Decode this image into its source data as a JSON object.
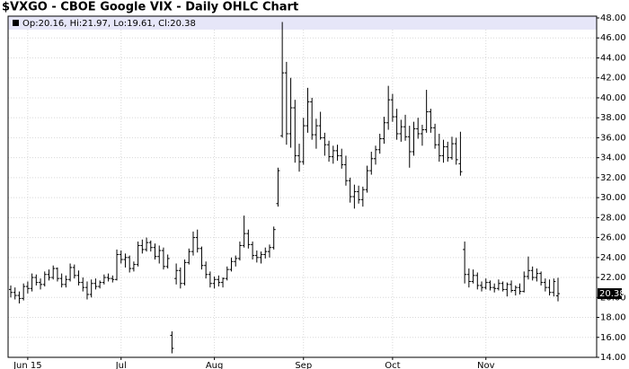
{
  "chart_data": {
    "type": "ohlc",
    "title": "$VXGO - CBOE Google VIX - Daily OHLC Chart",
    "legend": "Op:20.16, Hi:21.97, Lo:19.61, Cl:20.38",
    "color": "#000000",
    "grid": true,
    "last_price": 20.38,
    "ylim": [
      14,
      48
    ],
    "yticks": [
      {
        "value": 14,
        "label": "14.00"
      },
      {
        "value": 16,
        "label": "16.00"
      },
      {
        "value": 18,
        "label": "18.00"
      },
      {
        "value": 20,
        "label": "20.00"
      },
      {
        "value": 22,
        "label": "22.00"
      },
      {
        "value": 24,
        "label": "24.00"
      },
      {
        "value": 26,
        "label": "26.00"
      },
      {
        "value": 28,
        "label": "28.00"
      },
      {
        "value": 30,
        "label": "30.00"
      },
      {
        "value": 32,
        "label": "32.00"
      },
      {
        "value": 34,
        "label": "34.00"
      },
      {
        "value": 36,
        "label": "36.00"
      },
      {
        "value": 38,
        "label": "38.00"
      },
      {
        "value": 40,
        "label": "40.00"
      },
      {
        "value": 42,
        "label": "42.00"
      },
      {
        "value": 44,
        "label": "44.00"
      },
      {
        "value": 46,
        "label": "46.00"
      },
      {
        "value": 48,
        "label": "48.00"
      }
    ],
    "categories": [
      null,
      null,
      null,
      null,
      "Jun 15",
      null,
      null,
      null,
      null,
      null,
      null,
      null,
      null,
      null,
      null,
      null,
      null,
      null,
      null,
      null,
      null,
      null,
      null,
      null,
      null,
      null,
      "Jul",
      null,
      null,
      null,
      null,
      null,
      null,
      null,
      null,
      null,
      null,
      null,
      null,
      null,
      null,
      null,
      null,
      null,
      null,
      null,
      null,
      null,
      "Aug",
      null,
      null,
      null,
      null,
      null,
      null,
      null,
      null,
      null,
      null,
      null,
      null,
      null,
      null,
      null,
      null,
      null,
      null,
      null,
      null,
      "Sep",
      null,
      null,
      null,
      null,
      null,
      null,
      null,
      null,
      null,
      null,
      null,
      null,
      null,
      null,
      null,
      null,
      null,
      null,
      null,
      null,
      "Oct",
      null,
      null,
      null,
      null,
      null,
      null,
      null,
      null,
      null,
      null,
      null,
      null,
      null,
      null,
      null,
      null,
      null,
      null,
      null,
      null,
      null,
      "Nov",
      null,
      null,
      null,
      null,
      null,
      null,
      null,
      null,
      null,
      null,
      null,
      null,
      null,
      null,
      null,
      null,
      null
    ],
    "bars": [
      [
        20.8,
        21.2,
        20.0,
        20.5
      ],
      [
        20.5,
        21.0,
        19.8,
        20.2
      ],
      [
        20.2,
        20.6,
        19.4,
        19.9
      ],
      [
        19.9,
        21.4,
        19.7,
        21.1
      ],
      [
        21.1,
        21.6,
        20.4,
        20.9
      ],
      [
        20.9,
        22.4,
        20.6,
        22.0
      ],
      [
        22.0,
        22.3,
        21.2,
        21.5
      ],
      [
        21.5,
        21.9,
        20.8,
        21.3
      ],
      [
        21.3,
        22.6,
        21.1,
        22.3
      ],
      [
        22.3,
        22.8,
        21.7,
        22.0
      ],
      [
        22.0,
        23.2,
        21.8,
        22.9
      ],
      [
        22.9,
        23.0,
        21.6,
        21.9
      ],
      [
        21.9,
        22.4,
        21.0,
        21.3
      ],
      [
        21.3,
        22.2,
        21.0,
        21.8
      ],
      [
        21.8,
        23.4,
        21.6,
        23.0
      ],
      [
        23.0,
        23.3,
        21.9,
        22.2
      ],
      [
        22.2,
        22.7,
        21.2,
        21.5
      ],
      [
        21.5,
        22.0,
        20.6,
        21.0
      ],
      [
        21.0,
        21.6,
        19.8,
        20.3
      ],
      [
        20.3,
        21.8,
        20.0,
        21.4
      ],
      [
        21.4,
        21.9,
        20.8,
        21.1
      ],
      [
        21.1,
        21.7,
        20.9,
        21.5
      ],
      [
        21.5,
        22.3,
        21.3,
        22.0
      ],
      [
        22.0,
        22.4,
        21.6,
        21.9
      ],
      [
        21.9,
        22.2,
        21.5,
        21.8
      ],
      [
        21.8,
        24.8,
        21.7,
        24.3
      ],
      [
        24.3,
        24.7,
        23.4,
        23.8
      ],
      [
        23.8,
        24.4,
        23.0,
        24.0
      ],
      [
        24.0,
        24.2,
        22.5,
        22.9
      ],
      [
        22.9,
        23.6,
        22.6,
        23.3
      ],
      [
        23.3,
        25.6,
        23.1,
        25.2
      ],
      [
        25.2,
        25.8,
        24.4,
        24.8
      ],
      [
        24.8,
        26.0,
        24.6,
        25.5
      ],
      [
        25.5,
        25.7,
        24.6,
        25.0
      ],
      [
        25.0,
        25.4,
        23.8,
        24.1
      ],
      [
        24.1,
        25.2,
        23.4,
        24.7
      ],
      [
        24.7,
        25.0,
        22.8,
        23.1
      ],
      [
        23.1,
        24.3,
        22.9,
        23.9
      ],
      [
        16.2,
        16.6,
        14.4,
        14.9
      ],
      [
        21.9,
        23.4,
        21.3,
        22.7
      ],
      [
        22.7,
        23.0,
        20.9,
        21.4
      ],
      [
        21.4,
        23.8,
        21.2,
        23.5
      ],
      [
        23.5,
        24.9,
        23.3,
        24.6
      ],
      [
        24.6,
        26.6,
        24.2,
        26.0
      ],
      [
        26.0,
        26.8,
        24.5,
        24.9
      ],
      [
        24.9,
        25.1,
        22.8,
        23.2
      ],
      [
        23.2,
        23.6,
        21.9,
        22.3
      ],
      [
        22.3,
        22.6,
        21.0,
        21.4
      ],
      [
        21.4,
        22.1,
        20.9,
        21.8
      ],
      [
        21.8,
        22.2,
        21.1,
        21.5
      ],
      [
        21.5,
        22.0,
        21.0,
        21.9
      ],
      [
        21.9,
        23.1,
        21.7,
        22.8
      ],
      [
        22.8,
        24.0,
        22.6,
        23.6
      ],
      [
        23.6,
        24.2,
        23.1,
        23.9
      ],
      [
        23.9,
        25.6,
        23.7,
        25.2
      ],
      [
        25.2,
        28.2,
        25.0,
        26.4
      ],
      [
        26.4,
        26.8,
        24.9,
        25.3
      ],
      [
        25.3,
        25.6,
        23.8,
        24.2
      ],
      [
        24.2,
        24.7,
        23.5,
        24.0
      ],
      [
        24.0,
        24.6,
        23.4,
        24.3
      ],
      [
        24.3,
        25.0,
        23.9,
        24.6
      ],
      [
        24.6,
        25.3,
        24.0,
        25.0
      ],
      [
        25.0,
        27.1,
        24.8,
        26.8
      ],
      [
        29.4,
        33.0,
        29.1,
        32.7
      ],
      [
        36.2,
        47.6,
        36.0,
        42.5
      ],
      [
        42.5,
        43.6,
        35.3,
        36.4
      ],
      [
        36.4,
        42.0,
        35.0,
        39.0
      ],
      [
        39.0,
        39.8,
        33.5,
        34.2
      ],
      [
        34.2,
        35.4,
        32.6,
        33.6
      ],
      [
        33.6,
        38.0,
        33.3,
        37.2
      ],
      [
        37.2,
        41.0,
        36.5,
        39.6
      ],
      [
        39.6,
        40.0,
        35.8,
        36.3
      ],
      [
        36.3,
        37.9,
        34.9,
        37.2
      ],
      [
        37.2,
        38.6,
        35.8,
        36.0
      ],
      [
        36.0,
        36.5,
        34.2,
        35.3
      ],
      [
        35.3,
        35.7,
        33.6,
        34.1
      ],
      [
        34.1,
        35.2,
        33.4,
        34.7
      ],
      [
        34.7,
        35.3,
        33.7,
        34.2
      ],
      [
        34.2,
        34.9,
        32.9,
        33.3
      ],
      [
        33.3,
        34.2,
        31.2,
        31.7
      ],
      [
        31.7,
        32.0,
        29.5,
        30.1
      ],
      [
        30.1,
        31.3,
        28.9,
        30.6
      ],
      [
        30.6,
        31.2,
        29.4,
        29.8
      ],
      [
        29.8,
        31.1,
        29.1,
        30.8
      ],
      [
        30.8,
        33.2,
        30.5,
        32.7
      ],
      [
        32.7,
        34.6,
        32.3,
        33.9
      ],
      [
        33.9,
        35.2,
        33.3,
        34.8
      ],
      [
        34.8,
        36.4,
        34.4,
        35.9
      ],
      [
        35.9,
        38.1,
        35.4,
        37.5
      ],
      [
        37.5,
        41.2,
        36.8,
        39.8
      ],
      [
        39.8,
        40.4,
        37.6,
        38.1
      ],
      [
        38.1,
        38.9,
        35.8,
        36.4
      ],
      [
        36.4,
        37.8,
        35.6,
        37.1
      ],
      [
        37.1,
        38.3,
        35.7,
        36.1
      ],
      [
        36.1,
        37.2,
        33.0,
        34.6
      ],
      [
        34.6,
        37.6,
        34.2,
        36.9
      ],
      [
        36.9,
        38.0,
        35.9,
        36.4
      ],
      [
        36.4,
        37.3,
        35.2,
        36.8
      ],
      [
        36.8,
        40.8,
        36.5,
        38.6
      ],
      [
        38.6,
        38.9,
        36.5,
        37.0
      ],
      [
        37.0,
        37.4,
        34.9,
        35.3
      ],
      [
        35.3,
        36.4,
        33.6,
        34.2
      ],
      [
        34.2,
        35.8,
        33.5,
        35.1
      ],
      [
        35.1,
        35.6,
        33.6,
        34.0
      ],
      [
        34.0,
        36.1,
        33.8,
        35.4
      ],
      [
        35.4,
        36.0,
        33.3,
        33.8
      ],
      [
        33.4,
        36.6,
        32.2,
        32.6
      ],
      [
        24.8,
        25.6,
        21.4,
        22.3
      ],
      [
        22.3,
        22.9,
        21.0,
        21.6
      ],
      [
        21.6,
        22.8,
        21.4,
        22.2
      ],
      [
        22.2,
        22.5,
        20.8,
        21.2
      ],
      [
        21.2,
        21.6,
        20.6,
        21.0
      ],
      [
        21.0,
        21.9,
        20.8,
        21.5
      ],
      [
        21.5,
        21.7,
        20.7,
        21.0
      ],
      [
        21.0,
        21.4,
        20.5,
        20.9
      ],
      [
        20.9,
        21.8,
        20.7,
        21.4
      ],
      [
        21.4,
        21.6,
        20.6,
        20.8
      ],
      [
        20.8,
        21.5,
        20.1,
        21.3
      ],
      [
        21.3,
        21.7,
        20.5,
        20.7
      ],
      [
        20.7,
        21.2,
        20.2,
        21.0
      ],
      [
        21.0,
        21.4,
        20.3,
        20.6
      ],
      [
        20.6,
        22.6,
        20.5,
        22.1
      ],
      [
        22.1,
        24.1,
        21.8,
        22.7
      ],
      [
        22.7,
        23.1,
        21.7,
        22.0
      ],
      [
        22.0,
        22.9,
        21.6,
        22.4
      ],
      [
        22.4,
        22.6,
        21.2,
        21.5
      ],
      [
        21.5,
        21.9,
        20.6,
        21.0
      ],
      [
        21.0,
        21.8,
        20.2,
        20.5
      ],
      [
        20.5,
        21.9,
        20.1,
        21.6
      ],
      [
        20.16,
        21.97,
        19.61,
        20.38
      ]
    ]
  }
}
